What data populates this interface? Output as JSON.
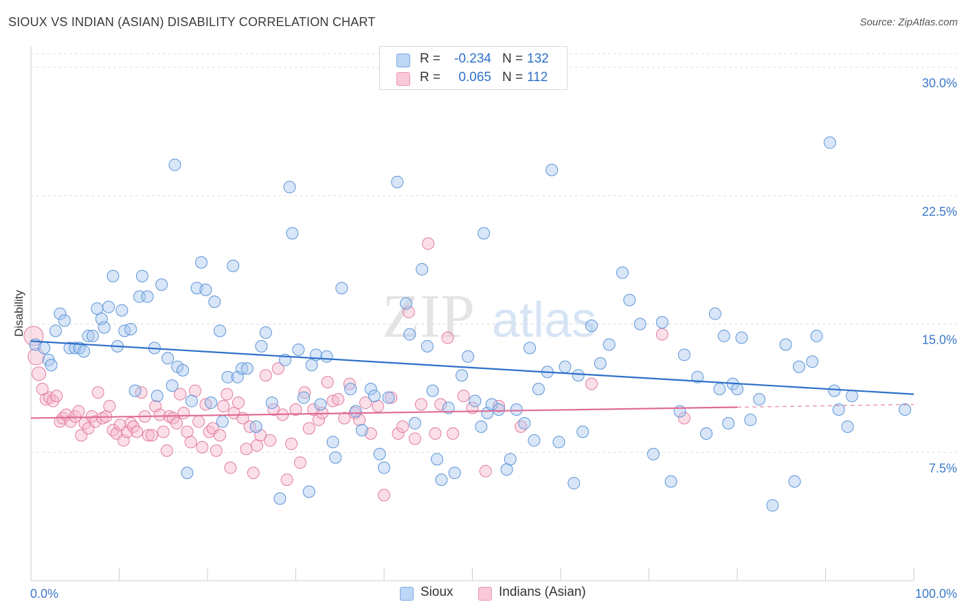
{
  "title": "SIOUX VS INDIAN (ASIAN) DISABILITY CORRELATION CHART",
  "source": "Source: ZipAtlas.com",
  "watermark": {
    "zip": "ZIP",
    "atlas": "atlas"
  },
  "legend": {
    "rows": [
      {
        "r_label": "R =",
        "r_value": "-0.234",
        "n_label": "N =",
        "n_value": "132"
      },
      {
        "r_label": "R =",
        "r_value": "0.065",
        "n_label": "N =",
        "n_value": "112"
      }
    ]
  },
  "bottom_legend": [
    "Sioux",
    "Indians (Asian)"
  ],
  "colors": {
    "sioux_fill": "#a8c8f0",
    "sioux_stroke": "#5a93d6",
    "sioux_line": "#2d6fc9",
    "indian_fill": "#f7b8cc",
    "indian_stroke": "#e07aa0",
    "indian_line": "#e06b96",
    "tick_text": "#3b78c9",
    "grid": "#dddddd"
  },
  "chart_data": {
    "type": "scatter",
    "title": "SIOUX VS INDIAN (ASIAN) DISABILITY CORRELATION CHART",
    "xlabel": "",
    "ylabel": "Disability",
    "xlim": [
      0,
      100
    ],
    "ylim": [
      0,
      31
    ],
    "x_tick_labels": [
      "0.0%",
      "100.0%"
    ],
    "y_ticks": [
      7.5,
      15.0,
      22.5,
      30.0
    ],
    "y_tick_labels": [
      "7.5%",
      "15.0%",
      "22.5%",
      "30.0%"
    ],
    "grid": "horizontal dashed",
    "legend_position": "top-center",
    "series": [
      {
        "name": "Sioux",
        "r": -0.234,
        "n": 132,
        "trend": {
          "x": [
            0,
            100
          ],
          "y": [
            14.0,
            10.9
          ]
        },
        "points": [
          [
            0.5,
            13.8
          ],
          [
            1.5,
            13.6
          ],
          [
            2,
            12.9
          ],
          [
            2.3,
            12.6
          ],
          [
            2.8,
            14.6
          ],
          [
            3.3,
            15.6
          ],
          [
            3.8,
            15.2
          ],
          [
            4.4,
            13.6
          ],
          [
            5,
            13.6
          ],
          [
            5.5,
            13.6
          ],
          [
            6,
            13.4
          ],
          [
            6.5,
            14.3
          ],
          [
            7,
            14.3
          ],
          [
            7.5,
            15.9
          ],
          [
            8,
            15.3
          ],
          [
            8.3,
            14.8
          ],
          [
            8.8,
            16
          ],
          [
            9.3,
            17.8
          ],
          [
            9.8,
            13.7
          ],
          [
            10.3,
            15.8
          ],
          [
            10.6,
            14.6
          ],
          [
            11.3,
            14.7
          ],
          [
            11.8,
            11.1
          ],
          [
            12.3,
            16.6
          ],
          [
            12.6,
            17.8
          ],
          [
            13.2,
            16.6
          ],
          [
            14,
            13.6
          ],
          [
            14.3,
            10.8
          ],
          [
            14.8,
            17.3
          ],
          [
            15.5,
            13
          ],
          [
            16,
            11.4
          ],
          [
            16.3,
            24.3
          ],
          [
            16.6,
            12.5
          ],
          [
            17.2,
            12.3
          ],
          [
            17.7,
            6.3
          ],
          [
            18.2,
            10.5
          ],
          [
            18.8,
            17.1
          ],
          [
            19.3,
            18.6
          ],
          [
            19.8,
            17
          ],
          [
            20.4,
            10.4
          ],
          [
            20.8,
            16.3
          ],
          [
            21.4,
            14.6
          ],
          [
            21.7,
            9.3
          ],
          [
            22.3,
            11.9
          ],
          [
            22.9,
            18.4
          ],
          [
            23.4,
            11.9
          ],
          [
            23.9,
            12.4
          ],
          [
            24.5,
            12.4
          ],
          [
            25.5,
            9
          ],
          [
            26.1,
            13.7
          ],
          [
            26.6,
            14.5
          ],
          [
            27.3,
            10.4
          ],
          [
            28.2,
            4.8
          ],
          [
            28.8,
            12.9
          ],
          [
            29.3,
            23
          ],
          [
            29.6,
            20.3
          ],
          [
            30.3,
            13.5
          ],
          [
            30.9,
            10.7
          ],
          [
            31.5,
            5.2
          ],
          [
            31.8,
            12.6
          ],
          [
            32.3,
            13.2
          ],
          [
            32.8,
            10.3
          ],
          [
            33.5,
            13.1
          ],
          [
            34.2,
            8.1
          ],
          [
            34.5,
            7.2
          ],
          [
            35.2,
            17.1
          ],
          [
            36.2,
            11.2
          ],
          [
            36.8,
            9.9
          ],
          [
            37.5,
            8.8
          ],
          [
            38.5,
            11.2
          ],
          [
            38.9,
            10.8
          ],
          [
            39.5,
            7.4
          ],
          [
            40,
            6.6
          ],
          [
            40.5,
            10.7
          ],
          [
            41.5,
            23.3
          ],
          [
            42.5,
            16.2
          ],
          [
            42.9,
            14.4
          ],
          [
            43.5,
            9.2
          ],
          [
            44.3,
            18.2
          ],
          [
            44.9,
            13.7
          ],
          [
            45.5,
            11.1
          ],
          [
            46,
            7.1
          ],
          [
            46.5,
            5.9
          ],
          [
            47.3,
            10.1
          ],
          [
            48,
            6.3
          ],
          [
            48.8,
            12
          ],
          [
            49.5,
            13.1
          ],
          [
            50.3,
            10.5
          ],
          [
            51,
            9
          ],
          [
            51.3,
            20.3
          ],
          [
            51.7,
            9.8
          ],
          [
            52.2,
            10.3
          ],
          [
            53,
            10
          ],
          [
            53.9,
            6.5
          ],
          [
            54.3,
            7.1
          ],
          [
            55,
            10
          ],
          [
            55.9,
            9.2
          ],
          [
            56.5,
            13.6
          ],
          [
            57,
            8.2
          ],
          [
            57.5,
            11.2
          ],
          [
            58.5,
            12.2
          ],
          [
            59,
            24
          ],
          [
            59.8,
            8.1
          ],
          [
            60.5,
            12.5
          ],
          [
            61.5,
            5.7
          ],
          [
            62,
            12
          ],
          [
            62.5,
            8.7
          ],
          [
            63.5,
            14.9
          ],
          [
            64.5,
            12.7
          ],
          [
            65.5,
            13.8
          ],
          [
            67,
            18
          ],
          [
            67.8,
            16.4
          ],
          [
            69,
            15
          ],
          [
            70.5,
            7.4
          ],
          [
            71.5,
            15.1
          ],
          [
            72.5,
            5.8
          ],
          [
            73.5,
            9.9
          ],
          [
            74,
            13.2
          ],
          [
            75.5,
            11.9
          ],
          [
            76.5,
            8.6
          ],
          [
            77.5,
            15.6
          ],
          [
            78,
            11.2
          ],
          [
            78.5,
            14.3
          ],
          [
            79,
            9.2
          ],
          [
            79.5,
            11.5
          ],
          [
            80,
            11.2
          ],
          [
            80.5,
            14.2
          ],
          [
            81.5,
            9.4
          ],
          [
            82.5,
            10.6
          ],
          [
            84,
            4.4
          ],
          [
            85.5,
            13.8
          ],
          [
            86.5,
            5.8
          ],
          [
            87,
            12.5
          ],
          [
            88.5,
            12.8
          ],
          [
            89,
            14.3
          ],
          [
            90.5,
            25.6
          ],
          [
            91,
            11.1
          ],
          [
            91.5,
            10
          ],
          [
            92.5,
            9
          ],
          [
            93,
            10.8
          ],
          [
            99,
            10
          ]
        ]
      },
      {
        "name": "Indians (Asian)",
        "r": 0.065,
        "n": 112,
        "trend": {
          "x": [
            0,
            100
          ],
          "y": [
            9.5,
            10.3
          ]
        },
        "points": [
          [
            0.3,
            14.3
          ],
          [
            0.6,
            13.1
          ],
          [
            0.9,
            12.1
          ],
          [
            1.3,
            11.2
          ],
          [
            1.7,
            10.6
          ],
          [
            2.1,
            10.7
          ],
          [
            2.5,
            10.5
          ],
          [
            2.9,
            10.8
          ],
          [
            3.3,
            9.3
          ],
          [
            3.6,
            9.5
          ],
          [
            4,
            9.7
          ],
          [
            4.5,
            9.3
          ],
          [
            5,
            9.6
          ],
          [
            5.4,
            9.9
          ],
          [
            5.7,
            8.5
          ],
          [
            6.1,
            9.2
          ],
          [
            6.5,
            8.9
          ],
          [
            6.9,
            9.6
          ],
          [
            7.3,
            9.3
          ],
          [
            7.6,
            11
          ],
          [
            8.1,
            9.5
          ],
          [
            8.5,
            9.6
          ],
          [
            8.9,
            10.2
          ],
          [
            9.3,
            8.8
          ],
          [
            9.7,
            8.6
          ],
          [
            10.1,
            9.1
          ],
          [
            10.5,
            8.2
          ],
          [
            10.9,
            8.7
          ],
          [
            11.3,
            9.2
          ],
          [
            11.6,
            9
          ],
          [
            12,
            8.7
          ],
          [
            12.5,
            11
          ],
          [
            12.9,
            9.6
          ],
          [
            13.3,
            8.5
          ],
          [
            13.7,
            8.5
          ],
          [
            14.1,
            10.2
          ],
          [
            14.6,
            9.7
          ],
          [
            15,
            8.7
          ],
          [
            15.4,
            7.6
          ],
          [
            15.7,
            9.6
          ],
          [
            16.1,
            9.5
          ],
          [
            16.5,
            9.2
          ],
          [
            16.9,
            10.9
          ],
          [
            17.3,
            9.8
          ],
          [
            17.7,
            8.7
          ],
          [
            18.1,
            8.1
          ],
          [
            18.6,
            11.1
          ],
          [
            19,
            9.3
          ],
          [
            19.4,
            7.8
          ],
          [
            19.8,
            10.3
          ],
          [
            20.2,
            8.7
          ],
          [
            20.6,
            8.9
          ],
          [
            21,
            7.6
          ],
          [
            21.4,
            8.5
          ],
          [
            21.8,
            10.2
          ],
          [
            22.2,
            10.9
          ],
          [
            22.6,
            6.6
          ],
          [
            23,
            9.8
          ],
          [
            23.5,
            10.4
          ],
          [
            24,
            9.5
          ],
          [
            24.4,
            7.7
          ],
          [
            24.8,
            9
          ],
          [
            25.2,
            6.3
          ],
          [
            25.6,
            7.9
          ],
          [
            26,
            8.5
          ],
          [
            26.6,
            12
          ],
          [
            27.1,
            8.2
          ],
          [
            27.5,
            10
          ],
          [
            28,
            12.4
          ],
          [
            28.5,
            9.7
          ],
          [
            29,
            5.9
          ],
          [
            29.5,
            8
          ],
          [
            30,
            10
          ],
          [
            30.5,
            6.9
          ],
          [
            31,
            11
          ],
          [
            31.5,
            8.9
          ],
          [
            32,
            10
          ],
          [
            32.6,
            9.4
          ],
          [
            33,
            9.8
          ],
          [
            33.6,
            11.6
          ],
          [
            34.2,
            10.5
          ],
          [
            34.8,
            10.6
          ],
          [
            35.5,
            9.5
          ],
          [
            36.1,
            11.5
          ],
          [
            36.7,
            9.8
          ],
          [
            37.2,
            9.4
          ],
          [
            37.9,
            10.4
          ],
          [
            38.5,
            8.6
          ],
          [
            39.3,
            10.2
          ],
          [
            40,
            5
          ],
          [
            40.8,
            10.7
          ],
          [
            41.6,
            8.6
          ],
          [
            42.1,
            9
          ],
          [
            42.8,
            15.7
          ],
          [
            43.5,
            8.3
          ],
          [
            44.2,
            10.3
          ],
          [
            45,
            19.7
          ],
          [
            45.8,
            8.6
          ],
          [
            46.4,
            10.3
          ],
          [
            47.2,
            14.2
          ],
          [
            47.8,
            8.6
          ],
          [
            49,
            10.8
          ],
          [
            50,
            10.1
          ],
          [
            51.5,
            6.4
          ],
          [
            53,
            10.2
          ],
          [
            55.5,
            9
          ],
          [
            63.5,
            11.5
          ],
          [
            71.5,
            14.4
          ],
          [
            74,
            9.5
          ]
        ]
      }
    ]
  }
}
